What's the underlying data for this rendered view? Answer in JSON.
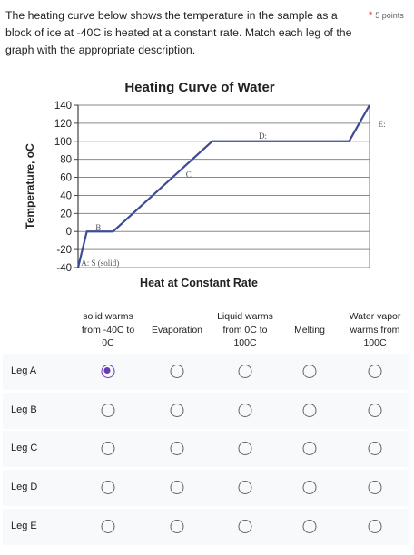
{
  "question": {
    "text": "The heating curve below shows the temperature in the sample as a block of ice at -40C is heated at a constant rate. Match each leg of the graph with the appropriate description.",
    "required_mark": "*",
    "points": "5 points"
  },
  "chart_data": {
    "type": "line",
    "title": "Heating Curve of Water",
    "xlabel": "Heat at Constant Rate",
    "ylabel": "Temperature, oC",
    "yticks": [
      140,
      120,
      100,
      80,
      60,
      40,
      20,
      0,
      -20,
      -40
    ],
    "ylim": [
      -40,
      140
    ],
    "xlim": [
      0,
      10
    ],
    "grid": true,
    "series": [
      {
        "x": [
          0,
          0.3,
          1.2,
          4.6,
          9.3,
          10.0
        ],
        "y": [
          -40,
          0,
          0,
          100,
          100,
          140
        ]
      }
    ],
    "annotations": [
      {
        "text": "A: S (solid)",
        "x": 0.1,
        "y": -38
      },
      {
        "text": "B",
        "x": 0.6,
        "y": 1
      },
      {
        "text": "C",
        "x": 3.7,
        "y": 60
      },
      {
        "text": "D:",
        "x": 6.2,
        "y": 103
      },
      {
        "text": "E:",
        "x": 10.3,
        "y": 116
      }
    ]
  },
  "grid": {
    "columns": [
      "solid warms from -40C to 0C",
      "Evaporation",
      "Liquid warms from 0C to 100C",
      "Melting",
      "Water vapor warms from 100C"
    ],
    "rows": [
      {
        "label": "Leg A",
        "selected": 0
      },
      {
        "label": "Leg B",
        "selected": -1
      },
      {
        "label": "Leg C",
        "selected": -1
      },
      {
        "label": "Leg D",
        "selected": -1
      },
      {
        "label": "Leg E",
        "selected": -1
      }
    ],
    "colors": {
      "accent": "#673ab7",
      "radio_border": "#5f6368",
      "row_bg": "#f8f9fa"
    }
  }
}
